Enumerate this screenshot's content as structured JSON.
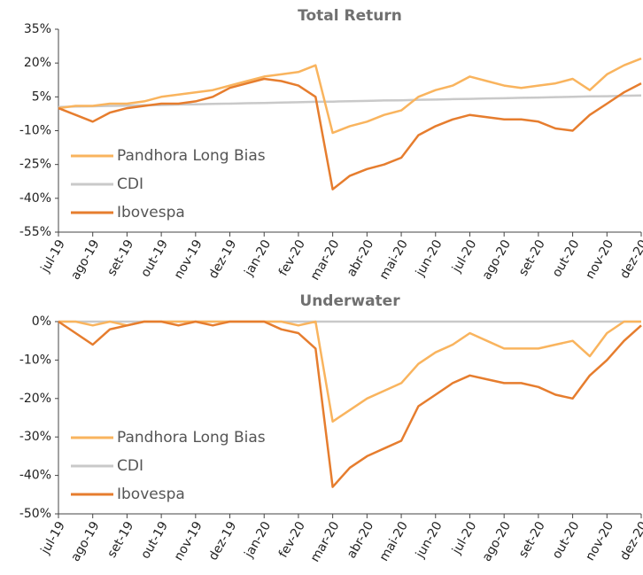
{
  "chart_data": [
    {
      "type": "line",
      "title": "Total Return",
      "x": [
        0,
        0.5,
        1,
        1.5,
        2,
        2.5,
        3,
        3.5,
        4,
        4.5,
        5,
        5.5,
        6,
        6.5,
        7,
        7.5,
        8,
        8.5,
        9,
        9.5,
        10,
        10.5,
        11,
        11.5,
        12,
        12.5,
        13,
        13.5,
        14,
        14.5,
        15,
        15.5,
        16,
        16.5,
        17
      ],
      "xlim": [
        0,
        17
      ],
      "xticks": [
        {
          "value": 0,
          "label": "jul-19"
        },
        {
          "value": 1,
          "label": "ago-19"
        },
        {
          "value": 2,
          "label": "set-19"
        },
        {
          "value": 3,
          "label": "out-19"
        },
        {
          "value": 4,
          "label": "nov-19"
        },
        {
          "value": 5,
          "label": "dez-19"
        },
        {
          "value": 6,
          "label": "jan-20"
        },
        {
          "value": 7,
          "label": "fev-20"
        },
        {
          "value": 8,
          "label": "mar-20"
        },
        {
          "value": 9,
          "label": "abr-20"
        },
        {
          "value": 10,
          "label": "mai-20"
        },
        {
          "value": 11,
          "label": "jun-20"
        },
        {
          "value": 12,
          "label": "jul-20"
        },
        {
          "value": 13,
          "label": "ago-20"
        },
        {
          "value": 14,
          "label": "set-20"
        },
        {
          "value": 15,
          "label": "out-20"
        },
        {
          "value": 16,
          "label": "nov-20"
        },
        {
          "value": 17,
          "label": "dez-20"
        }
      ],
      "ylim": [
        -55,
        35
      ],
      "yticks": [
        {
          "value": -55,
          "label": "-55%"
        },
        {
          "value": -40,
          "label": "-40%"
        },
        {
          "value": -25,
          "label": "-25%"
        },
        {
          "value": -10,
          "label": "-10%"
        },
        {
          "value": 5,
          "label": "5%"
        },
        {
          "value": 20,
          "label": "20%"
        },
        {
          "value": 35,
          "label": "35%"
        }
      ],
      "legend": "lower left",
      "series": [
        {
          "name": "Pandhora Long Bias",
          "color": "#f9b45e",
          "values": [
            0,
            1,
            1,
            2,
            2,
            3,
            5,
            6,
            7,
            8,
            10,
            12,
            14,
            15,
            16,
            19,
            -11,
            -8,
            -6,
            -3,
            -1,
            5,
            8,
            10,
            14,
            12,
            10,
            9,
            10,
            11,
            13,
            8,
            15,
            19,
            22
          ]
        },
        {
          "name": "CDI",
          "color": "#c9c9c9",
          "values": [
            0.5,
            0.7,
            0.8,
            1,
            1.1,
            1.3,
            1.4,
            1.6,
            1.7,
            1.9,
            2,
            2.2,
            2.3,
            2.5,
            2.6,
            2.8,
            2.9,
            3.1,
            3.2,
            3.4,
            3.5,
            3.7,
            3.8,
            4,
            4.1,
            4.3,
            4.4,
            4.6,
            4.7,
            4.9,
            5,
            5.2,
            5.3,
            5.5,
            5.6
          ]
        },
        {
          "name": "Ibovespa",
          "color": "#e67d2e",
          "values": [
            0,
            -3,
            -6,
            -2,
            0,
            1,
            2,
            2,
            3,
            5,
            9,
            11,
            13,
            12,
            10,
            5,
            -36,
            -30,
            -27,
            -25,
            -22,
            -12,
            -8,
            -5,
            -3,
            -4,
            -5,
            -5,
            -6,
            -9,
            -10,
            -3,
            2,
            7,
            11
          ]
        }
      ]
    },
    {
      "type": "line",
      "title": "Underwater",
      "x": [
        0,
        0.5,
        1,
        1.5,
        2,
        2.5,
        3,
        3.5,
        4,
        4.5,
        5,
        5.5,
        6,
        6.5,
        7,
        7.5,
        8,
        8.5,
        9,
        9.5,
        10,
        10.5,
        11,
        11.5,
        12,
        12.5,
        13,
        13.5,
        14,
        14.5,
        15,
        15.5,
        16,
        16.5,
        17
      ],
      "xlim": [
        0,
        17
      ],
      "xticks": [
        {
          "value": 0,
          "label": "jul-19"
        },
        {
          "value": 1,
          "label": "ago-19"
        },
        {
          "value": 2,
          "label": "set-19"
        },
        {
          "value": 3,
          "label": "out-19"
        },
        {
          "value": 4,
          "label": "nov-19"
        },
        {
          "value": 5,
          "label": "dez-19"
        },
        {
          "value": 6,
          "label": "jan-20"
        },
        {
          "value": 7,
          "label": "fev-20"
        },
        {
          "value": 8,
          "label": "mar-20"
        },
        {
          "value": 9,
          "label": "abr-20"
        },
        {
          "value": 10,
          "label": "mai-20"
        },
        {
          "value": 11,
          "label": "jun-20"
        },
        {
          "value": 12,
          "label": "jul-20"
        },
        {
          "value": 13,
          "label": "ago-20"
        },
        {
          "value": 14,
          "label": "set-20"
        },
        {
          "value": 15,
          "label": "out-20"
        },
        {
          "value": 16,
          "label": "nov-20"
        },
        {
          "value": 17,
          "label": "dez-20"
        }
      ],
      "ylim": [
        -50,
        0
      ],
      "yticks": [
        {
          "value": -50,
          "label": "-50%"
        },
        {
          "value": -40,
          "label": "-40%"
        },
        {
          "value": -30,
          "label": "-30%"
        },
        {
          "value": -20,
          "label": "-20%"
        },
        {
          "value": -10,
          "label": "-10%"
        },
        {
          "value": 0,
          "label": "0%"
        }
      ],
      "legend": "lower left",
      "series": [
        {
          "name": "Pandhora Long Bias",
          "color": "#f9b45e",
          "values": [
            0,
            0,
            -1,
            0,
            -1,
            0,
            0,
            0,
            0,
            0,
            0,
            0,
            0,
            0,
            -1,
            0,
            -26,
            -23,
            -20,
            -18,
            -16,
            -11,
            -8,
            -6,
            -3,
            -5,
            -7,
            -7,
            -7,
            -6,
            -5,
            -9,
            -3,
            0,
            0
          ]
        },
        {
          "name": "CDI",
          "color": "#c9c9c9",
          "values": [
            0,
            0,
            0,
            0,
            0,
            0,
            0,
            0,
            0,
            0,
            0,
            0,
            0,
            0,
            0,
            0,
            0,
            0,
            0,
            0,
            0,
            0,
            0,
            0,
            0,
            0,
            0,
            0,
            0,
            0,
            0,
            0,
            0,
            0,
            0
          ]
        },
        {
          "name": "Ibovespa",
          "color": "#e67d2e",
          "values": [
            0,
            -3,
            -6,
            -2,
            -1,
            0,
            0,
            -1,
            0,
            -1,
            0,
            0,
            0,
            -2,
            -3,
            -7,
            -43,
            -38,
            -35,
            -33,
            -31,
            -22,
            -19,
            -16,
            -14,
            -15,
            -16,
            -16,
            -17,
            -19,
            -20,
            -14,
            -10,
            -5,
            -1
          ]
        }
      ]
    }
  ]
}
